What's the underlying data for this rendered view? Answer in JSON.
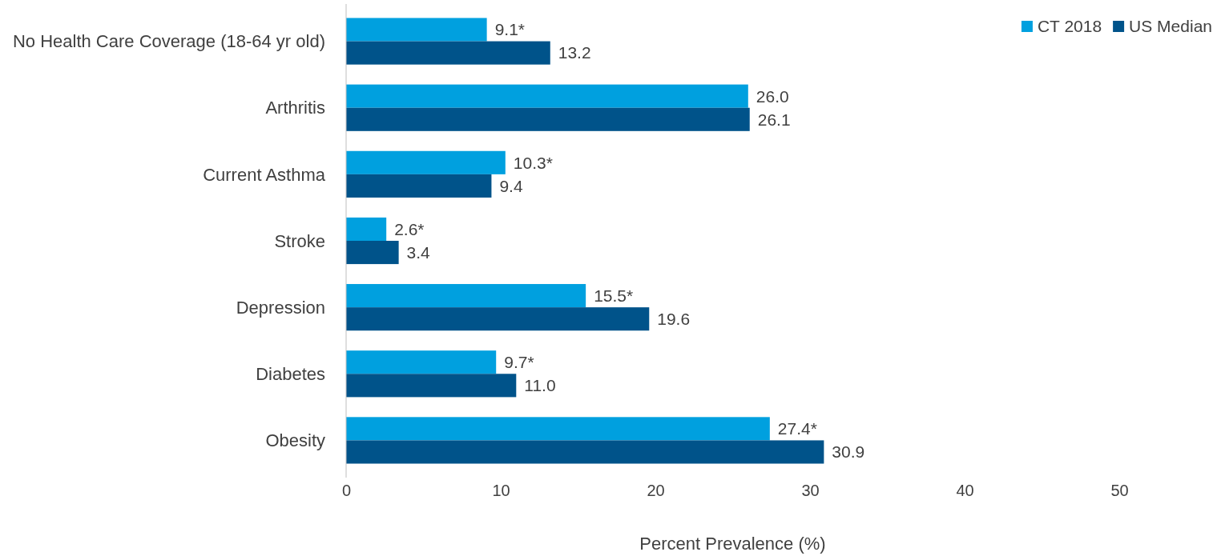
{
  "chart_data": {
    "type": "bar",
    "orientation": "horizontal",
    "xlabel": "Percent Prevalence (%)",
    "categories": [
      "No Health Care Coverage (18-64 yr old)",
      "Arthritis",
      "Current Asthma",
      "Stroke",
      "Depression",
      "Diabetes",
      "Obesity"
    ],
    "series": [
      {
        "name": "CT 2018",
        "color": "#00a0df",
        "values": [
          9.1,
          26.0,
          10.3,
          2.6,
          15.5,
          9.7,
          27.4
        ],
        "value_labels": [
          "9.1*",
          "26.0",
          "10.3*",
          "2.6*",
          "15.5*",
          "9.7*",
          "27.4*"
        ]
      },
      {
        "name": "US Median",
        "color": "#00538a",
        "values": [
          13.2,
          26.1,
          9.4,
          3.4,
          19.6,
          11.0,
          30.9
        ],
        "value_labels": [
          "13.2",
          "26.1",
          "9.4",
          "3.4",
          "19.6",
          "11.0",
          "30.9"
        ]
      }
    ],
    "xlim": [
      0,
      50
    ],
    "xticks": [
      0,
      10,
      20,
      30,
      40,
      50
    ],
    "grid": false,
    "legend": "top right"
  }
}
